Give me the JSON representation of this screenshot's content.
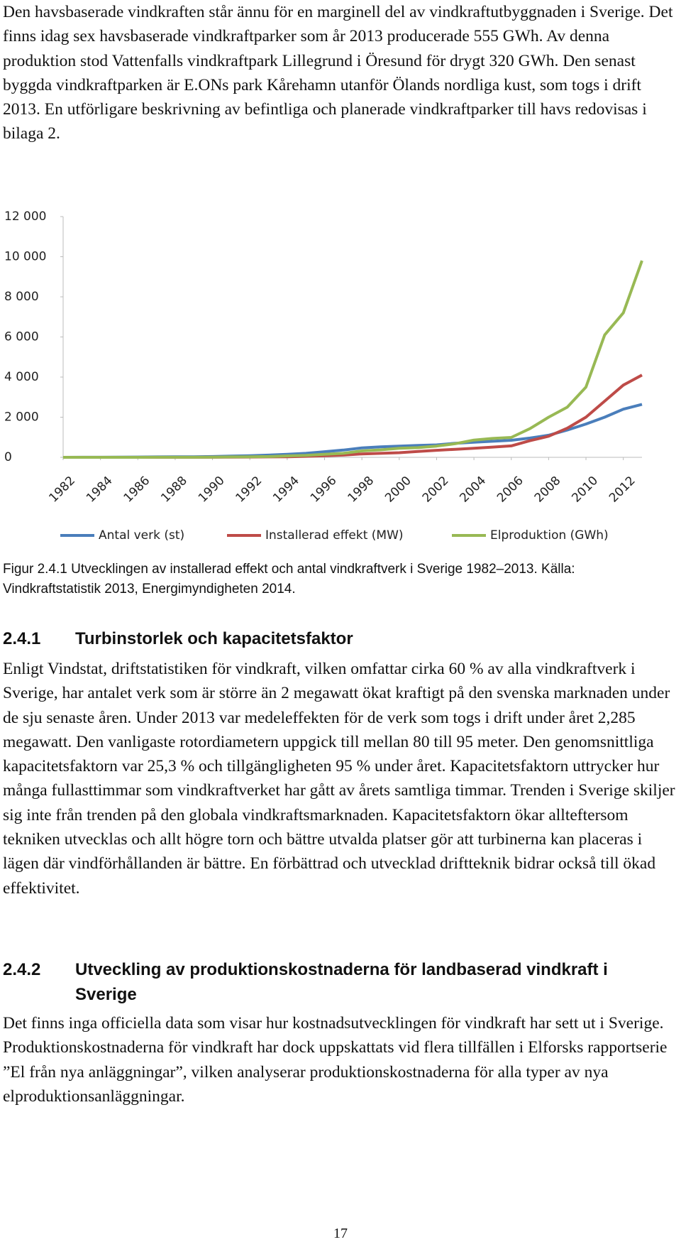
{
  "intro": "Den havsbaserade vindkraften står ännu för en marginell del av vindkraftutbyggnaden i Sverige. Det finns idag sex havsbaserade vindkraftparker som år 2013 producerade 555 GWh. Av denna produktion stod Vattenfalls vindkraftpark Lillegrund i Öresund för drygt 320 GWh. Den senast byggda vindkraftparken är E.ONs park Kårehamn utanför Ölands nordliga kust, som togs i drift 2013. En utförligare beskrivning av befintliga och planerade vindkraftparker till havs redovisas i bilaga 2.",
  "chart_data": {
    "type": "line",
    "x": [
      1982,
      1983,
      1984,
      1985,
      1986,
      1987,
      1988,
      1989,
      1990,
      1991,
      1992,
      1993,
      1994,
      1995,
      1996,
      1997,
      1998,
      1999,
      2000,
      2001,
      2002,
      2003,
      2004,
      2005,
      2006,
      2007,
      2008,
      2009,
      2010,
      2011,
      2012,
      2013
    ],
    "xlim": [
      1982,
      2013
    ],
    "xticks": [
      1982,
      1984,
      1986,
      1988,
      1990,
      1992,
      1994,
      1996,
      1998,
      2000,
      2002,
      2004,
      2006,
      2008,
      2010,
      2012
    ],
    "ylim": [
      0,
      12000
    ],
    "yticks": [
      0,
      {
        "value": 2000,
        "label": "2 000"
      },
      {
        "value": 4000,
        "label": "4 000"
      },
      {
        "value": 6000,
        "label": "6 000"
      },
      {
        "value": 8000,
        "label": "8 000"
      },
      {
        "value": 10000,
        "label": "10 000"
      },
      {
        "value": 12000,
        "label": "12 000"
      }
    ],
    "grid": false,
    "legend": "bottom",
    "series": [
      {
        "name": "Antal verk (st)",
        "color": "#4a7ebb",
        "values": [
          0,
          2,
          5,
          10,
          15,
          20,
          25,
          30,
          40,
          60,
          80,
          110,
          150,
          200,
          280,
          360,
          470,
          520,
          560,
          590,
          620,
          700,
          750,
          800,
          850,
          960,
          1100,
          1360,
          1660,
          2000,
          2400,
          2640
        ]
      },
      {
        "name": "Installerad effekt (MW)",
        "color": "#be4b48",
        "values": [
          0,
          0,
          0,
          0,
          0,
          0,
          0,
          0,
          5,
          10,
          15,
          20,
          30,
          50,
          80,
          110,
          170,
          200,
          230,
          290,
          350,
          400,
          450,
          510,
          570,
          830,
          1050,
          1450,
          2000,
          2800,
          3600,
          4100
        ]
      },
      {
        "name": "Elproduktion (GWh)",
        "color": "#98b954",
        "values": [
          0,
          0,
          0,
          0,
          0,
          2,
          5,
          5,
          10,
          20,
          30,
          40,
          70,
          100,
          150,
          200,
          320,
          370,
          450,
          480,
          560,
          680,
          860,
          940,
          990,
          1430,
          2000,
          2500,
          3500,
          6100,
          7200,
          9800
        ]
      }
    ]
  },
  "caption": "Figur 2.4.1 Utvecklingen av installerad effekt och antal vindkraftverk i Sverige 1982–2013. Källa: Vindkraftstatistik 2013, Energimyndigheten 2014.",
  "sections": [
    {
      "number": "2.4.1",
      "title": "Turbinstorlek och kapacitetsfaktor",
      "body": "Enligt Vindstat, driftstatistiken för vindkraft, vilken omfattar cirka 60 % av alla vindkraftverk i Sverige, har antalet verk som är större än 2 megawatt ökat kraftigt på den svenska marknaden under de sju senaste åren. Under 2013 var medeleffekten för de verk som togs i drift under året 2,285 megawatt. Den vanligaste rotordiametern uppgick till mellan 80 till 95 meter. Den genomsnittliga kapacitetsfaktorn var 25,3 % och tillgängligheten 95 % under året. Kapacitetsfaktorn uttrycker hur många fullasttimmar som vindkraftverket har gått av årets samtliga timmar. Trenden i Sverige skiljer sig inte från trenden på den globala vindkraftsmarknaden. Kapacitetsfaktorn ökar allteftersom tekniken utvecklas och allt högre torn och bättre utvalda platser gör att turbinerna kan placeras i lägen där vindförhållanden är bättre. En förbättrad och utvecklad driftteknik bidrar också till ökad effektivitet."
    },
    {
      "number": "2.4.2",
      "title": "Utveckling av produktionskostnaderna för landbaserad vindkraft i Sverige",
      "body": "Det finns inga officiella data som visar hur kostnadsutvecklingen för vindkraft har sett ut i Sverige. Produktionskostnaderna för vindkraft har dock uppskattats vid flera tillfällen i Elforsks rapportserie ”El från nya anläggningar”, vilken analyserar produktionskostnaderna för alla typer av nya elproduktionsanläggningar."
    }
  ],
  "page_number": "17"
}
